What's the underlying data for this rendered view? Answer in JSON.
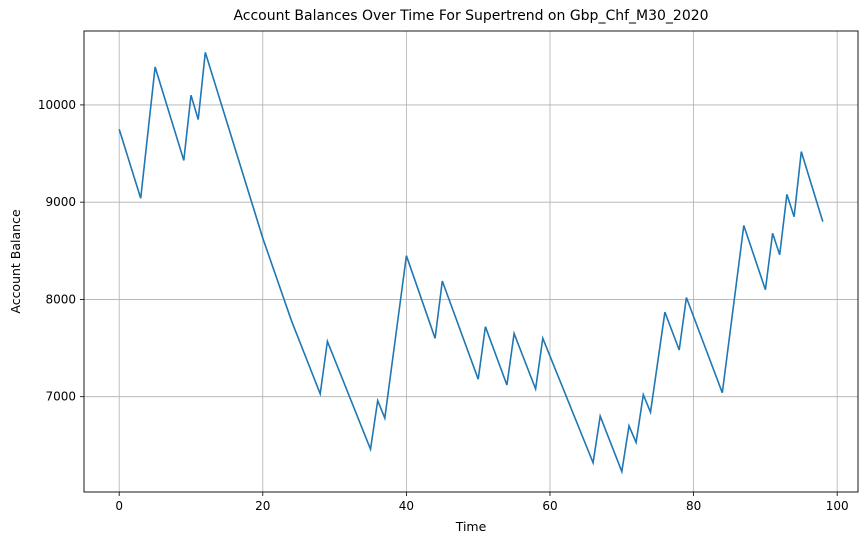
{
  "chart_data": {
    "type": "line",
    "title": "Account Balances Over Time For Supertrend on Gbp_Chf_M30_2020",
    "xlabel": "Time",
    "ylabel": "Account Balance",
    "xlim": [
      -4.9,
      102.9
    ],
    "ylim": [
      6020,
      10760
    ],
    "xticks": [
      0,
      20,
      40,
      60,
      80,
      100
    ],
    "yticks": [
      7000,
      8000,
      9000,
      10000
    ],
    "grid": true,
    "series": [
      {
        "color": "#1f77b4",
        "points": [
          [
            0,
            9750
          ],
          [
            3,
            9040
          ],
          [
            5,
            10390
          ],
          [
            9,
            9430
          ],
          [
            10,
            10100
          ],
          [
            11,
            9850
          ],
          [
            12,
            10540
          ],
          [
            20,
            8630
          ],
          [
            24,
            7780
          ],
          [
            28,
            7030
          ],
          [
            29,
            7570
          ],
          [
            35,
            6460
          ],
          [
            36,
            6960
          ],
          [
            37,
            6780
          ],
          [
            40,
            8450
          ],
          [
            44,
            7600
          ],
          [
            45,
            8190
          ],
          [
            50,
            7180
          ],
          [
            51,
            7720
          ],
          [
            54,
            7120
          ],
          [
            55,
            7650
          ],
          [
            58,
            7080
          ],
          [
            59,
            7600
          ],
          [
            66,
            6320
          ],
          [
            67,
            6800
          ],
          [
            70,
            6230
          ],
          [
            71,
            6700
          ],
          [
            72,
            6530
          ],
          [
            73,
            7020
          ],
          [
            74,
            6840
          ],
          [
            76,
            7870
          ],
          [
            78,
            7480
          ],
          [
            79,
            8020
          ],
          [
            84,
            7040
          ],
          [
            87,
            8760
          ],
          [
            90,
            8100
          ],
          [
            91,
            8680
          ],
          [
            92,
            8460
          ],
          [
            93,
            9080
          ],
          [
            94,
            8850
          ],
          [
            95,
            9520
          ],
          [
            98,
            8800
          ]
        ]
      }
    ]
  }
}
